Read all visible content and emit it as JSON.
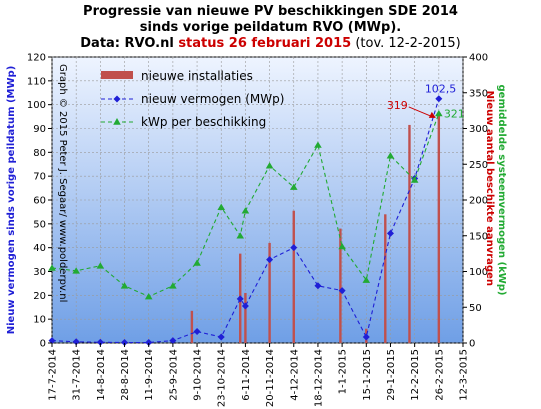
{
  "title": {
    "line1": "Progressie van nieuwe PV beschikkingen  SDE  2014",
    "line2": "sinds vorige peildatum RVO (MWp).",
    "line3_prefix": "Data: RVO.nl ",
    "line3_status": "status 26 februari 2015",
    "line3_suffix": " (tov. 12-2-2015)"
  },
  "watermark": "Graph © 2015 Peter J. Segaar/ www.polderpv.nl",
  "colors": {
    "plot_top": "#eef4ff",
    "plot_bottom": "#6f9fe6",
    "bars": "#c0504d",
    "line_blue": "#1f1fd6",
    "line_green": "#22aa33",
    "right_axis_red": "#cc0000",
    "right_axis_green": "#22aa33"
  },
  "chart_data": {
    "type": "bar",
    "categories": [
      "17-7-2014",
      "31-7-2014",
      "14-8-2014",
      "28-8-2014",
      "11-9-2014",
      "25-9-2014",
      "9-10-2014",
      "23-10-2014",
      "6-11-2014",
      "20-11-2014",
      "4-12-2014",
      "18-12-2014",
      "1-1-2015",
      "15-1-2015",
      "29-1-2015",
      "12-2-2015",
      "26-2-2015",
      "12-3-2015"
    ],
    "x_dates": [
      "2014-07-17",
      "2014-07-31",
      "2014-08-14",
      "2014-08-28",
      "2014-09-11",
      "2014-09-25",
      "2014-10-09",
      "2014-10-23",
      "2014-11-06",
      "2014-11-20",
      "2014-12-04",
      "2014-12-18",
      "2015-01-01",
      "2015-01-15",
      "2015-01-29",
      "2015-02-12",
      "2015-02-26",
      "2015-03-12"
    ],
    "series": [
      {
        "name": "nieuwe installaties",
        "axis": "right",
        "type": "bar",
        "points": [
          [
            "2014-07-17",
            0
          ],
          [
            "2014-07-31",
            0
          ],
          [
            "2014-08-14",
            0
          ],
          [
            "2014-08-28",
            0
          ],
          [
            "2014-09-11",
            0
          ],
          [
            "2014-09-25",
            5
          ],
          [
            "2014-10-06",
            45
          ],
          [
            "2014-10-28",
            0
          ],
          [
            "2014-11-03",
            125
          ],
          [
            "2014-11-06",
            70
          ],
          [
            "2014-11-20",
            140
          ],
          [
            "2014-12-04",
            185
          ],
          [
            "2014-12-18",
            0
          ],
          [
            "2014-12-31",
            160
          ],
          [
            "2015-01-15",
            20
          ],
          [
            "2015-01-26",
            180
          ],
          [
            "2015-02-09",
            305
          ],
          [
            "2015-02-26",
            319
          ]
        ]
      },
      {
        "name": "nieuw vermogen (MWp)",
        "axis": "left",
        "type": "line",
        "points": [
          [
            "2014-07-17",
            1.0
          ],
          [
            "2014-07-31",
            0.5
          ],
          [
            "2014-08-14",
            0.3
          ],
          [
            "2014-08-28",
            0.2
          ],
          [
            "2014-09-11",
            0.2
          ],
          [
            "2014-09-25",
            1.0
          ],
          [
            "2014-10-09",
            4.8
          ],
          [
            "2014-10-23",
            2.5
          ],
          [
            "2014-11-03",
            18.5
          ],
          [
            "2014-11-06",
            15.5
          ],
          [
            "2014-11-20",
            35
          ],
          [
            "2014-12-04",
            40
          ],
          [
            "2014-12-18",
            24
          ],
          [
            "2015-01-01",
            22
          ],
          [
            "2015-01-15",
            2.5
          ],
          [
            "2015-01-29",
            46
          ],
          [
            "2015-02-12",
            69
          ],
          [
            "2015-02-26",
            102.5
          ]
        ]
      },
      {
        "name": "kWp per beschikking",
        "axis": "right",
        "type": "line",
        "points": [
          [
            "2014-07-17",
            105
          ],
          [
            "2014-07-31",
            101
          ],
          [
            "2014-08-14",
            108
          ],
          [
            "2014-08-28",
            80
          ],
          [
            "2014-09-11",
            65
          ],
          [
            "2014-09-25",
            80
          ],
          [
            "2014-10-09",
            112
          ],
          [
            "2014-10-23",
            190
          ],
          [
            "2014-11-03",
            150
          ],
          [
            "2014-11-06",
            185
          ],
          [
            "2014-11-20",
            248
          ],
          [
            "2014-12-04",
            218
          ],
          [
            "2014-12-18",
            277
          ],
          [
            "2015-01-01",
            135
          ],
          [
            "2015-01-15",
            88
          ],
          [
            "2015-01-29",
            262
          ],
          [
            "2015-02-12",
            228
          ],
          [
            "2015-02-26",
            321
          ]
        ]
      }
    ],
    "left_axis": {
      "label": "Nieuw vermogen sinds vorige peildatum (MWp)",
      "min": 0,
      "max": 120,
      "step": 10
    },
    "right_axis": {
      "label_red": "Nieuw aantal beschikte aanvragen",
      "label_green": "gemiddelde systeemvermogen (kWp)",
      "min": 0,
      "max": 400,
      "step": 50
    },
    "x_range": [
      "2014-07-17",
      "2015-03-12"
    ],
    "annotations": [
      {
        "text": "319",
        "x": "2015-02-26",
        "y": 319,
        "axis": "right",
        "color": "#cc0000"
      },
      {
        "text": "102,5",
        "x": "2015-02-26",
        "y": 102.5,
        "axis": "left",
        "color": "#1f1fd6"
      },
      {
        "text": "321",
        "x": "2015-02-26",
        "y": 321,
        "axis": "right",
        "color": "#22aa33"
      }
    ],
    "grid": true,
    "legend_position": "top-left"
  }
}
